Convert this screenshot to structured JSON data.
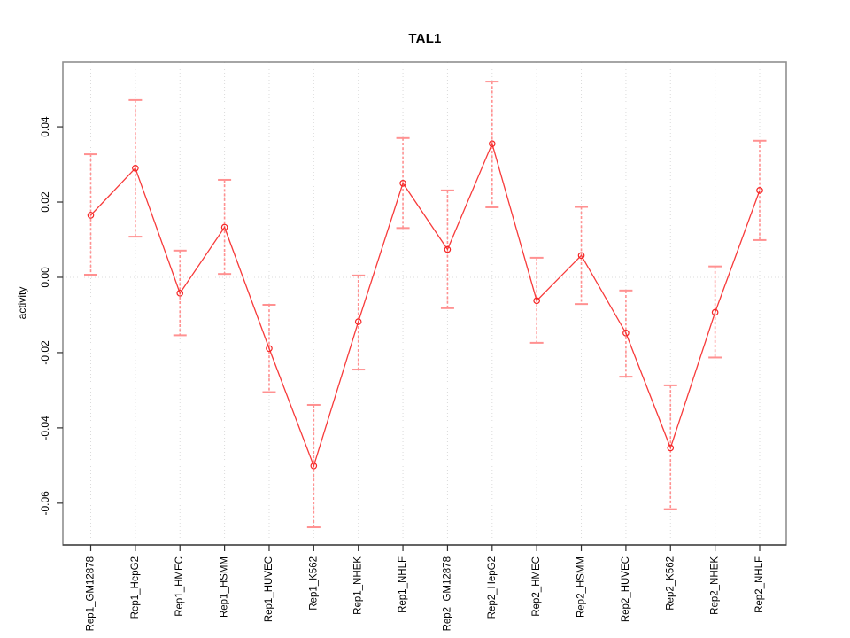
{
  "figure": {
    "title": "TAL1",
    "ylabel": "activity"
  },
  "chart_data": {
    "type": "line",
    "title": "TAL1",
    "xlabel": "",
    "ylabel": "activity",
    "categories": [
      "Rep1_GM12878",
      "Rep1_HepG2",
      "Rep1_HMEC",
      "Rep1_HSMM",
      "Rep1_HUVEC",
      "Rep1_K562",
      "Rep1_NHEK",
      "Rep1_NHLF",
      "Rep2_GM12878",
      "Rep2_HepG2",
      "Rep2_HMEC",
      "Rep2_HSMM",
      "Rep2_HUVEC",
      "Rep2_K562",
      "Rep2_NHEK",
      "Rep2_NHLF"
    ],
    "series": [
      {
        "name": "activity",
        "values": [
          0.0165,
          0.029,
          -0.0042,
          0.0133,
          -0.0189,
          -0.0501,
          -0.0118,
          0.025,
          0.0074,
          0.0355,
          -0.0062,
          0.0058,
          -0.0148,
          -0.0453,
          -0.0093,
          0.0231
        ],
        "upper_error": [
          0.0327,
          0.0471,
          0.0071,
          0.0259,
          -0.0073,
          -0.0339,
          0.0005,
          0.037,
          0.0231,
          0.052,
          0.0052,
          0.0187,
          -0.0035,
          -0.0287,
          0.0029,
          0.0363
        ],
        "lower_error": [
          0.0007,
          0.0108,
          -0.0154,
          0.0009,
          -0.0305,
          -0.0664,
          -0.0245,
          0.0131,
          -0.0082,
          0.0186,
          -0.0174,
          -0.0071,
          -0.0264,
          -0.0616,
          -0.0213,
          0.0099
        ]
      }
    ],
    "ylim": [
      -0.0711,
      0.0572
    ],
    "yticks": [
      0.04,
      0.02,
      0.0,
      -0.02,
      -0.04,
      -0.06
    ],
    "ytick_labels": [
      "0.04",
      "0.02",
      "0.00",
      "-0.02",
      "-0.04",
      "-0.06"
    ],
    "grid": "vertical dotted gridline at each category, horizontal dotted line at y=0 only",
    "legend": "none",
    "point_style": "open circles with error bars, categories rotated 90 degrees"
  },
  "style": {
    "line_color": "#f73a3a",
    "point_color": "#f52525",
    "errorbar_color": "#ff9191",
    "grid_color": "#dbdbdb",
    "box_color": "#8f8f8f",
    "axis_color": "#2f2f2f",
    "text_color": "#000000",
    "background": "#ffffff"
  }
}
